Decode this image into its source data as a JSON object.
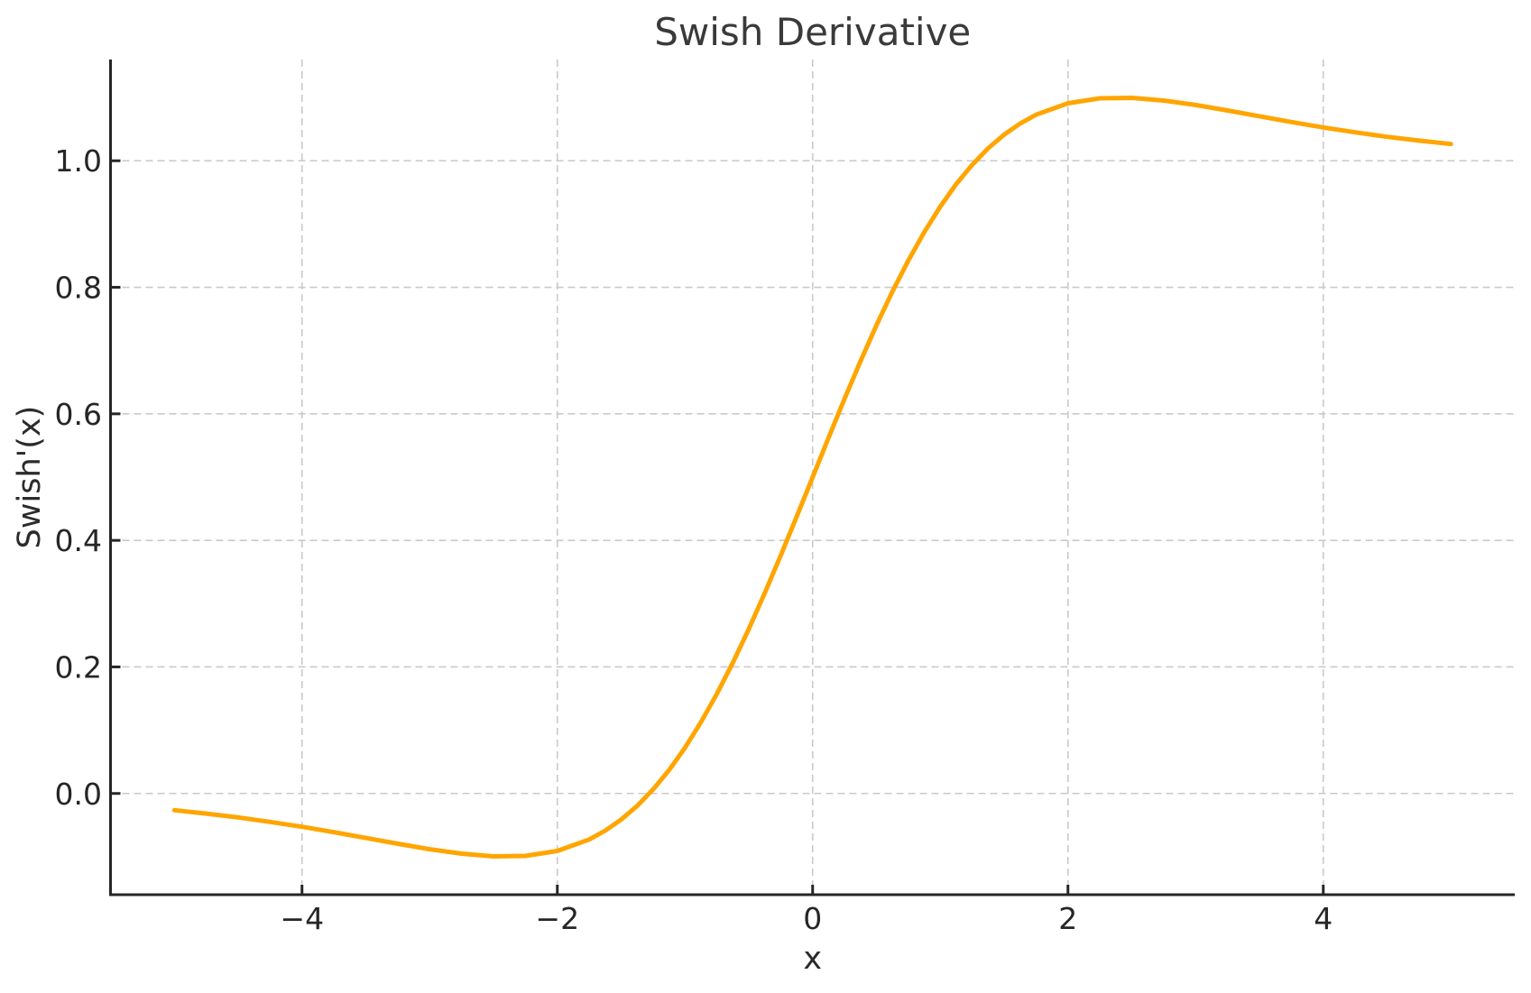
{
  "colors": {
    "line": "#FFA500",
    "grid": "#c9c9c9",
    "spine": "#262626",
    "tick": "#262626",
    "title_text": "#3a3a3a",
    "tick_text": "#262626",
    "label_text": "#2b2b2b",
    "background": "#ffffff"
  },
  "chart_data": {
    "type": "line",
    "title": "Swish Derivative",
    "xlabel": "x",
    "ylabel": "Swish'(x)",
    "xlim": [
      -5.5,
      5.5
    ],
    "ylim": [
      -0.16,
      1.16
    ],
    "grid": true,
    "grid_style": "dashed",
    "legend": false,
    "xticks": {
      "values": [
        -4,
        -2,
        0,
        2,
        4
      ],
      "labels": [
        "−4",
        "−2",
        "0",
        "2",
        "4"
      ]
    },
    "yticks": {
      "values": [
        0.0,
        0.2,
        0.4,
        0.6,
        0.8,
        1.0
      ],
      "labels": [
        "0.0",
        "0.2",
        "0.4",
        "0.6",
        "0.8",
        "1.0"
      ]
    },
    "series": [
      {
        "name": "swish-derivative",
        "color": "#FFA500",
        "line_width": 5,
        "x": [
          -5,
          -4.75,
          -4.5,
          -4.25,
          -4,
          -3.75,
          -3.5,
          -3.25,
          -3,
          -2.75,
          -2.5,
          -2.25,
          -2,
          -1.75,
          -1.625,
          -1.5,
          -1.375,
          -1.25,
          -1.125,
          -1,
          -0.875,
          -0.75,
          -0.625,
          -0.5,
          -0.375,
          -0.25,
          -0.125,
          0,
          0.125,
          0.25,
          0.375,
          0.5,
          0.625,
          0.75,
          0.875,
          1,
          1.125,
          1.25,
          1.375,
          1.5,
          1.625,
          1.75,
          2,
          2.25,
          2.5,
          2.75,
          3,
          3.25,
          3.5,
          3.75,
          4,
          4.25,
          4.5,
          4.75,
          5
        ],
        "y": [
          -0.0265,
          -0.0318,
          -0.0379,
          -0.0449,
          -0.0527,
          -0.0612,
          -0.0703,
          -0.0795,
          -0.0881,
          -0.0952,
          -0.0994,
          -0.0987,
          -0.0908,
          -0.0727,
          -0.0588,
          -0.0413,
          -0.0197,
          0.0063,
          0.0369,
          0.0723,
          0.1125,
          0.1574,
          0.2067,
          0.26,
          0.3168,
          0.3763,
          0.4377,
          0.5,
          0.5623,
          0.6237,
          0.6832,
          0.74,
          0.7933,
          0.8426,
          0.8875,
          0.9277,
          0.9631,
          0.9937,
          1.0197,
          1.0413,
          1.0588,
          1.0727,
          1.0908,
          1.0987,
          1.0994,
          1.0952,
          1.0881,
          1.0795,
          1.0703,
          1.0612,
          1.0527,
          1.0449,
          1.0379,
          1.0318,
          1.0265
        ]
      }
    ]
  }
}
